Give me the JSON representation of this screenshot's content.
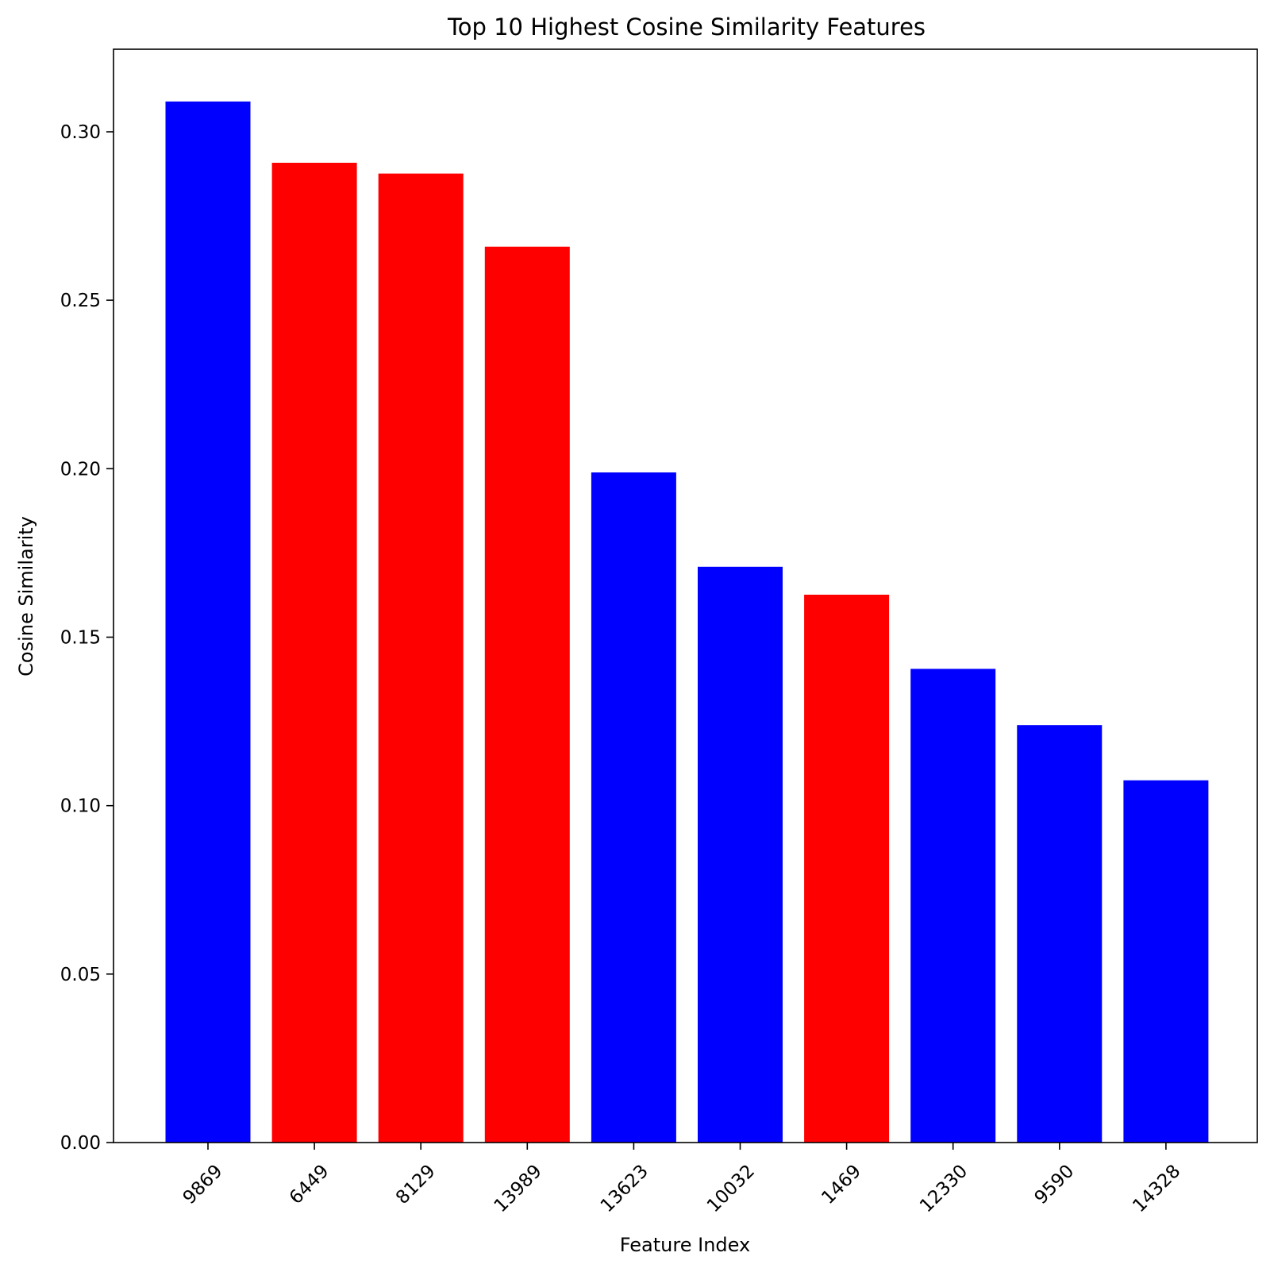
{
  "chart_data": {
    "type": "bar",
    "title": "Top 10 Highest Cosine Similarity Features",
    "xlabel": "Feature Index",
    "ylabel": "Cosine Similarity",
    "categories": [
      "9869",
      "6449",
      "8129",
      "13989",
      "13623",
      "10032",
      "1469",
      "12330",
      "9590",
      "14328"
    ],
    "values": [
      0.309,
      0.2908,
      0.2876,
      0.2659,
      0.1989,
      0.1709,
      0.1626,
      0.1406,
      0.1239,
      0.1075
    ],
    "bar_colors": [
      "#0000ff",
      "#ff0000",
      "#ff0000",
      "#ff0000",
      "#0000ff",
      "#0000ff",
      "#ff0000",
      "#0000ff",
      "#0000ff",
      "#0000ff"
    ],
    "ylim": [
      0,
      0.3245
    ],
    "yticks": [
      0.0,
      0.05,
      0.1,
      0.15,
      0.2,
      0.25,
      0.3
    ],
    "ytick_labels": [
      "0.00",
      "0.05",
      "0.10",
      "0.15",
      "0.20",
      "0.25",
      "0.30"
    ],
    "grid": false,
    "legend": "none"
  }
}
